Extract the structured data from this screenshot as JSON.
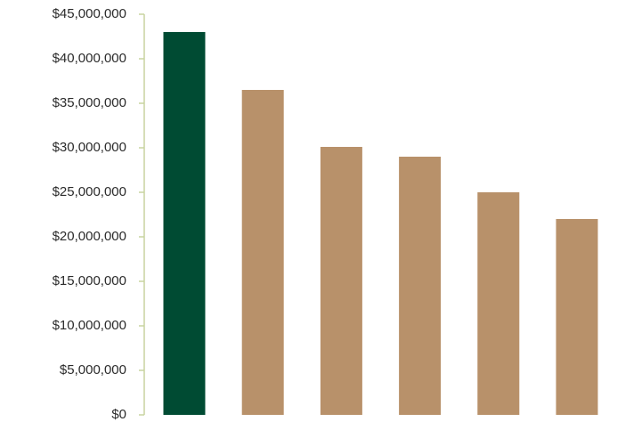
{
  "chart_data": {
    "type": "bar",
    "title": "",
    "xlabel": "",
    "ylabel": "",
    "categories": [
      "",
      "",
      "",
      "",
      "",
      ""
    ],
    "values": [
      43000000,
      36500000,
      30100000,
      29000000,
      25000000,
      22000000
    ],
    "ylim": [
      0,
      45000000
    ],
    "yticks": [
      0,
      5000000,
      10000000,
      15000000,
      20000000,
      25000000,
      30000000,
      35000000,
      40000000,
      45000000
    ],
    "ytick_labels": [
      "$0",
      "$5,000,000",
      "$10,000,000",
      "$15,000,000",
      "$20,000,000",
      "$25,000,000",
      "$30,000,000",
      "$35,000,000",
      "$40,000,000",
      "$45,000,000"
    ],
    "grid": false,
    "legend": "none",
    "colors": {
      "highlight": "#004b33",
      "bar": "#b8916a",
      "axis": "#c9d4a0",
      "text": "#2b2b2b"
    },
    "bar_colors": [
      "#004b33",
      "#b8916a",
      "#b8916a",
      "#b8916a",
      "#b8916a",
      "#b8916a"
    ]
  }
}
